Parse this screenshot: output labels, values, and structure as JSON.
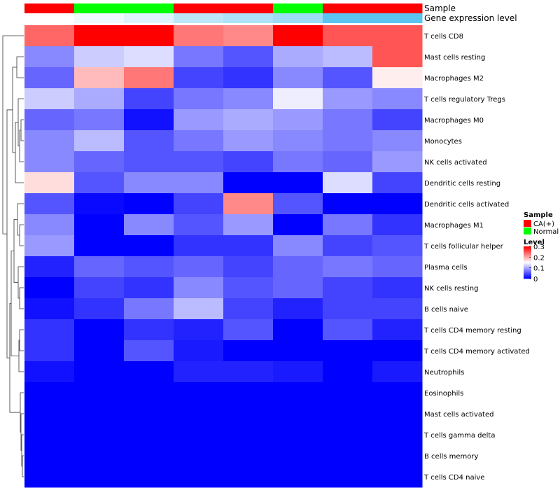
{
  "chart_data": {
    "type": "heatmap",
    "annotation_rows": [
      {
        "label": "Sample"
      },
      {
        "label": "Gene expression level"
      }
    ],
    "sample_groups": [
      "CA(+)",
      "Normal",
      "Normal",
      "CA(+)",
      "CA(+)",
      "Normal",
      "CA(+)",
      "CA(+)"
    ],
    "expression_levels": [
      0.0,
      0.03,
      0.06,
      0.12,
      0.15,
      0.18,
      0.3,
      0.3
    ],
    "rows": [
      "T cells CD8",
      "Mast cells resting",
      "Macrophages M2",
      "T cells regulatory  Tregs",
      "Macrophages M0",
      "Monocytes",
      "NK cells activated",
      "Dendritic cells resting",
      "Dendritic cells activated",
      "Macrophages M1",
      "T cells follicular helper",
      "Plasma cells",
      "NK cells resting",
      "B cells naive",
      "T cells CD4 memory resting",
      "T cells CD4 memory activated",
      "Neutrophils",
      "Eosinophils",
      "Mast cells activated",
      "T cells gamma delta",
      "B cells memory",
      "T cells CD4 naive"
    ],
    "values": [
      [
        0.24,
        0.3,
        0.3,
        0.23,
        0.22,
        0.3,
        0.25,
        0.25
      ],
      [
        0.08,
        0.12,
        0.13,
        0.07,
        0.05,
        0.1,
        0.11,
        0.25
      ],
      [
        0.06,
        0.19,
        0.23,
        0.04,
        0.03,
        0.08,
        0.05,
        0.16
      ],
      [
        0.12,
        0.1,
        0.04,
        0.07,
        0.08,
        0.14,
        0.09,
        0.08
      ],
      [
        0.06,
        0.07,
        0.01,
        0.09,
        0.1,
        0.09,
        0.07,
        0.04
      ],
      [
        0.08,
        0.11,
        0.05,
        0.07,
        0.09,
        0.08,
        0.07,
        0.08
      ],
      [
        0.08,
        0.06,
        0.05,
        0.05,
        0.04,
        0.07,
        0.06,
        0.09
      ],
      [
        0.17,
        0.05,
        0.08,
        0.08,
        0.0,
        0.0,
        0.13,
        0.04
      ],
      [
        0.05,
        0.005,
        0.0,
        0.04,
        0.22,
        0.05,
        0.0,
        0.0
      ],
      [
        0.08,
        0.0,
        0.08,
        0.05,
        0.09,
        0.0,
        0.07,
        0.03
      ],
      [
        0.09,
        0.0,
        0.0,
        0.03,
        0.03,
        0.08,
        0.04,
        0.05
      ],
      [
        0.02,
        0.06,
        0.05,
        0.06,
        0.04,
        0.06,
        0.07,
        0.06
      ],
      [
        0.0,
        0.04,
        0.03,
        0.08,
        0.05,
        0.06,
        0.04,
        0.03
      ],
      [
        0.01,
        0.03,
        0.07,
        0.11,
        0.04,
        0.02,
        0.04,
        0.04
      ],
      [
        0.03,
        0.0,
        0.03,
        0.02,
        0.05,
        0.0,
        0.05,
        0.02
      ],
      [
        0.03,
        0.0,
        0.05,
        0.015,
        0.0,
        0.0,
        0.0,
        0.0
      ],
      [
        0.01,
        0.0,
        0.0,
        0.02,
        0.02,
        0.015,
        0.0,
        0.015
      ],
      [
        0.0,
        0.0,
        0.0,
        0.0,
        0.0,
        0.0,
        0.0,
        0.0
      ],
      [
        0.0,
        0.0,
        0.0,
        0.0,
        0.0,
        0.0,
        0.0,
        0.0
      ],
      [
        0.0,
        0.0,
        0.0,
        0.0,
        0.0,
        0.0,
        0.0,
        0.0
      ],
      [
        0.0,
        0.0,
        0.0,
        0.0,
        0.0,
        0.0,
        0.0,
        0.0
      ],
      [
        0.0,
        0.0,
        0.0,
        0.0,
        0.0,
        0.0,
        0.0,
        0.0
      ]
    ],
    "color_scale": {
      "min": 0,
      "max": 0.3,
      "low": "#0000ff",
      "mid": "#ffffff",
      "high": "#ff0000"
    },
    "legend": {
      "sample_title": "Sample",
      "sample_entries": [
        {
          "label": "CA(+)",
          "color": "#ff0000"
        },
        {
          "label": "Normal",
          "color": "#00ff00"
        }
      ],
      "level_title": "Level",
      "level_ticks": [
        "0.3",
        "0.2",
        "0.1",
        "0"
      ],
      "level_tick_values": [
        0.3,
        0.2,
        0.1,
        0
      ]
    },
    "expression_scale": {
      "low": "#ffffff",
      "high": "#5bc4f0",
      "max": 0.3
    }
  }
}
